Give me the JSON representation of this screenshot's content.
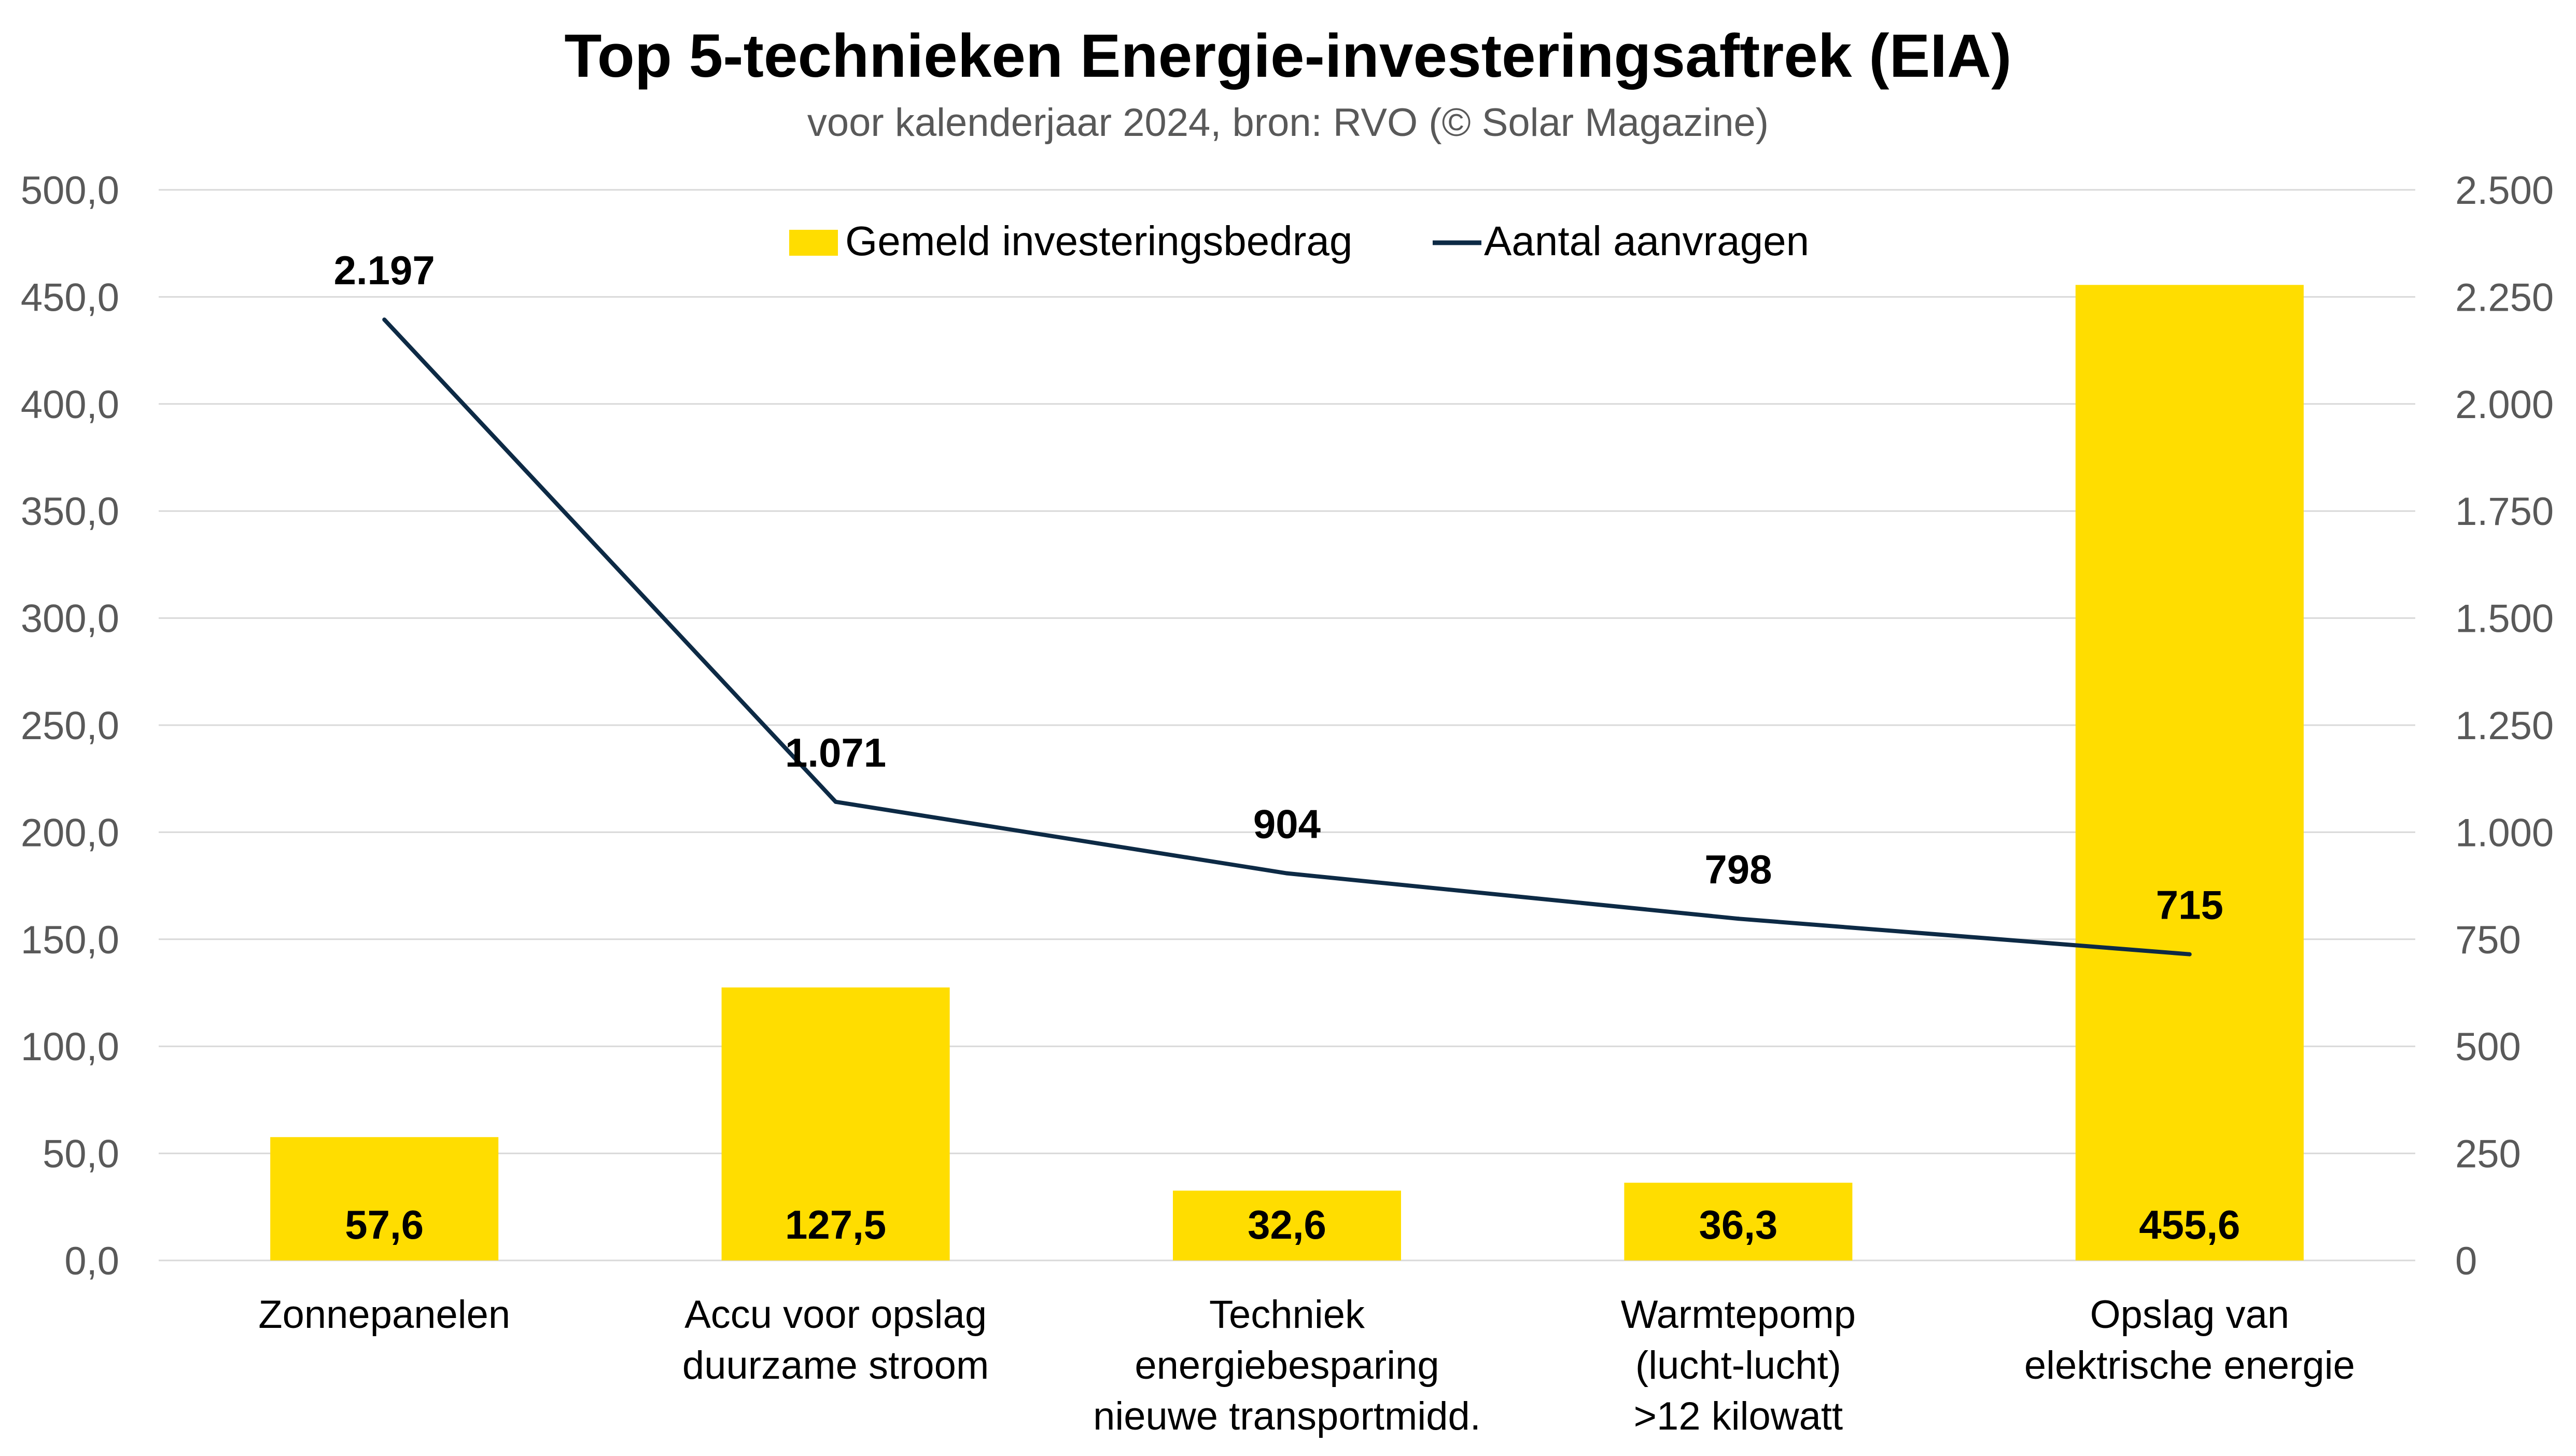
{
  "chart_data": {
    "type": "bar",
    "title": "Top 5-technieken Energie-investeringsaftrek (EIA)",
    "subtitle": "voor kalenderjaar 2024, bron: RVO (© Solar Magazine)",
    "categories": [
      [
        "Zonnepanelen"
      ],
      [
        "Accu voor opslag",
        "duurzame stroom"
      ],
      [
        "Techniek",
        "energiebesparing",
        "nieuwe transportmidd."
      ],
      [
        "Warmtepomp",
        "(lucht-lucht)",
        ">12 kilowatt"
      ],
      [
        "Opslag van",
        "elektrische energie"
      ]
    ],
    "series": [
      {
        "name": "Gemeld investeringsbedrag",
        "type": "bar",
        "axis": "left",
        "color": "#FFDD00",
        "values": [
          57.6,
          127.5,
          32.6,
          36.3,
          455.6
        ],
        "labels": [
          "57,6",
          "127,5",
          "32,6",
          "36,3",
          "455,6"
        ]
      },
      {
        "name": "Aantal aanvragen",
        "type": "line",
        "axis": "right",
        "color": "#0D2A45",
        "values": [
          2197,
          1071,
          904,
          798,
          715
        ],
        "labels": [
          "2.197",
          "1.071",
          "904",
          "798",
          "715"
        ]
      }
    ],
    "y_left": {
      "range": [
        0,
        500
      ],
      "ticks": [
        0,
        50,
        100,
        150,
        200,
        250,
        300,
        350,
        400,
        450,
        500
      ],
      "tick_labels": [
        "0,0",
        "50,0",
        "100,0",
        "150,0",
        "200,0",
        "250,0",
        "300,0",
        "350,0",
        "400,0",
        "450,0",
        "500,0"
      ]
    },
    "y_right": {
      "range": [
        0,
        2500
      ],
      "ticks": [
        0,
        250,
        500,
        750,
        1000,
        1250,
        1500,
        1750,
        2000,
        2250,
        2500
      ],
      "tick_labels": [
        "0",
        "250",
        "500",
        "750",
        "1.000",
        "1.250",
        "1.500",
        "1.750",
        "2.000",
        "2.250",
        "2.500"
      ]
    },
    "grid": true,
    "legend": "top-center"
  }
}
